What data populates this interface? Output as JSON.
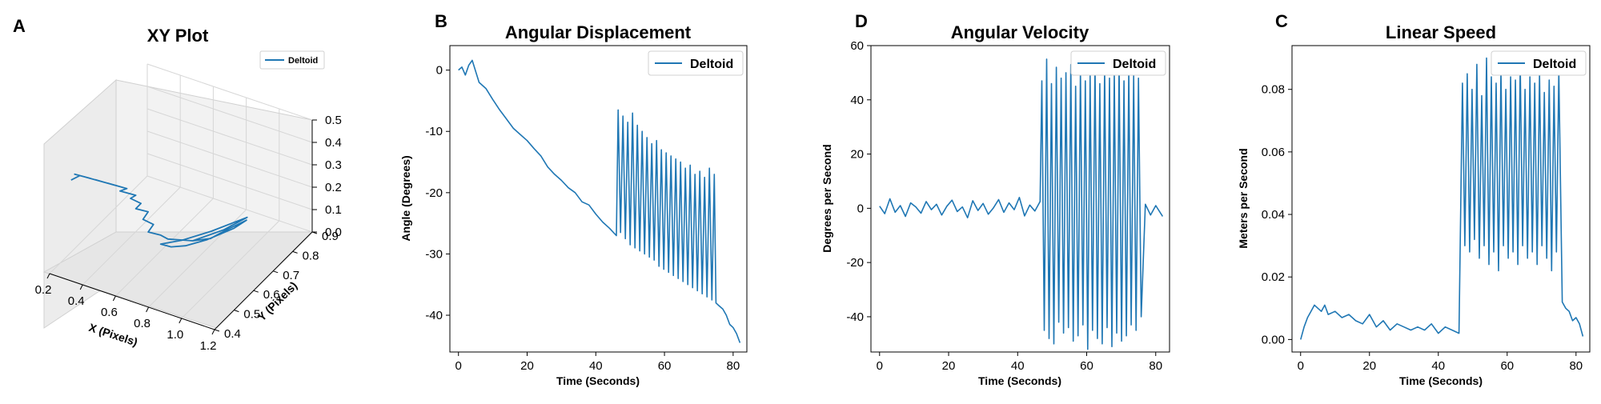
{
  "colors": {
    "series": "#1f77b4",
    "pane": "#f2f2f2",
    "grid": "#d9d9d9",
    "axis": "#000000"
  },
  "chart_data": [
    {
      "panel": "A",
      "type": "line3d",
      "title": "XY Plot",
      "xlabel": "X (Pixels)",
      "ylabel": "Y (Pixels)",
      "zlabel": "",
      "xlim": [
        0.2,
        1.2
      ],
      "ylim": [
        0.4,
        0.9
      ],
      "zlim": [
        0.0,
        0.5
      ],
      "xticks": [
        "0.2",
        "0.4",
        "0.6",
        "0.8",
        "1.0",
        "1.2"
      ],
      "yticks": [
        "0.4",
        "0.5",
        "0.6",
        "0.7",
        "0.8",
        "0.9"
      ],
      "zticks": [
        "0.0",
        "0.1",
        "0.2",
        "0.3",
        "0.4",
        "0.5"
      ],
      "legend": {
        "entries": [
          "Deltoid"
        ],
        "placement": "upper right"
      },
      "series": [
        {
          "name": "Deltoid",
          "points_xyz": [
            [
              0.33,
              0.4,
              0.45
            ],
            [
              0.36,
              0.42,
              0.46
            ],
            [
              0.34,
              0.41,
              0.47
            ],
            [
              0.4,
              0.44,
              0.44
            ],
            [
              0.38,
              0.43,
              0.45
            ],
            [
              0.45,
              0.46,
              0.42
            ],
            [
              0.42,
              0.45,
              0.43
            ],
            [
              0.5,
              0.48,
              0.4
            ],
            [
              0.47,
              0.47,
              0.41
            ],
            [
              0.55,
              0.5,
              0.38
            ],
            [
              0.52,
              0.49,
              0.37
            ],
            [
              0.58,
              0.52,
              0.34
            ],
            [
              0.56,
              0.51,
              0.33
            ],
            [
              0.6,
              0.53,
              0.3
            ],
            [
              0.58,
              0.52,
              0.28
            ],
            [
              0.62,
              0.55,
              0.25
            ],
            [
              0.6,
              0.54,
              0.22
            ],
            [
              0.64,
              0.56,
              0.19
            ],
            [
              0.62,
              0.55,
              0.16
            ],
            [
              0.66,
              0.58,
              0.13
            ],
            [
              0.68,
              0.6,
              0.1
            ],
            [
              0.72,
              0.63,
              0.08
            ],
            [
              0.76,
              0.66,
              0.06
            ],
            [
              0.82,
              0.7,
              0.05
            ],
            [
              0.86,
              0.74,
              0.06
            ],
            [
              0.92,
              0.8,
              0.07
            ],
            [
              0.88,
              0.77,
              0.05
            ],
            [
              0.8,
              0.7,
              0.04
            ],
            [
              0.74,
              0.64,
              0.05
            ],
            [
              0.7,
              0.6,
              0.07
            ],
            [
              0.66,
              0.58,
              0.09
            ],
            [
              0.72,
              0.64,
              0.07
            ],
            [
              0.8,
              0.72,
              0.06
            ],
            [
              0.9,
              0.82,
              0.06
            ],
            [
              0.84,
              0.75,
              0.05
            ],
            [
              0.76,
              0.66,
              0.06
            ]
          ]
        }
      ]
    },
    {
      "panel": "B",
      "type": "line",
      "title": "Angular Displacement",
      "xlabel": "Time (Seconds)",
      "ylabel": "Angle (Degrees)",
      "xlim": [
        -2.5,
        84
      ],
      "ylim": [
        -46,
        4
      ],
      "xticks": [
        0,
        20,
        40,
        60,
        80
      ],
      "yticks": [
        0,
        -10,
        -20,
        -30,
        -40
      ],
      "legend": {
        "entries": [
          "Deltoid"
        ],
        "placement": "upper right"
      },
      "series": [
        {
          "name": "Deltoid",
          "x": [
            0.0,
            1.0,
            2.0,
            3.0,
            4.0,
            6.0,
            8.0,
            10.0,
            12.0,
            14.0,
            16.0,
            18.0,
            20.0,
            22.0,
            24.0,
            26.0,
            28.0,
            30.0,
            32.0,
            34.0,
            36.0,
            38.0,
            40.0,
            42.0,
            44.0,
            46.0,
            46.5,
            47.2,
            47.9,
            48.6,
            49.3,
            50.0,
            50.7,
            51.4,
            52.1,
            52.8,
            53.5,
            54.2,
            54.9,
            55.6,
            56.3,
            57.0,
            57.7,
            58.4,
            59.1,
            59.8,
            60.5,
            61.2,
            61.9,
            62.6,
            63.3,
            64.0,
            64.7,
            65.4,
            66.1,
            66.8,
            67.5,
            68.2,
            68.9,
            69.6,
            70.3,
            71.0,
            71.7,
            72.4,
            73.1,
            73.8,
            74.5,
            75.0,
            76.0,
            77.0,
            78.0,
            79.0,
            80.0,
            81.0,
            82.0
          ],
          "y": [
            0.0,
            0.5,
            -0.8,
            0.8,
            1.6,
            -2.0,
            -3.0,
            -4.8,
            -6.5,
            -8.0,
            -9.5,
            -10.5,
            -11.5,
            -12.8,
            -14.0,
            -15.8,
            -17.0,
            -18.0,
            -19.2,
            -20.0,
            -21.5,
            -22.0,
            -23.5,
            -24.8,
            -25.8,
            -27.0,
            -6.5,
            -26.5,
            -7.5,
            -27.5,
            -8.5,
            -28.5,
            -7.0,
            -29.0,
            -9.0,
            -29.5,
            -10.0,
            -30.0,
            -11.0,
            -30.5,
            -12.0,
            -31.0,
            -11.5,
            -32.0,
            -13.0,
            -32.5,
            -13.5,
            -33.0,
            -14.0,
            -33.5,
            -14.5,
            -34.0,
            -15.0,
            -34.5,
            -16.0,
            -35.0,
            -15.5,
            -35.5,
            -17.0,
            -36.0,
            -16.5,
            -36.5,
            -17.5,
            -37.0,
            -16.0,
            -37.5,
            -17.0,
            -38.0,
            -38.5,
            -39.0,
            -40.0,
            -41.5,
            -42.0,
            -43.0,
            -44.5
          ]
        }
      ]
    },
    {
      "panel": "D",
      "type": "line",
      "title": "Angular Velocity",
      "xlabel": "Time (Seconds)",
      "ylabel": "Degrees per Second",
      "xlim": [
        -2.5,
        84
      ],
      "ylim": [
        -53,
        60
      ],
      "xticks": [
        0,
        20,
        40,
        60,
        80
      ],
      "yticks": [
        60,
        40,
        20,
        0,
        -20,
        -40
      ],
      "legend": {
        "entries": [
          "Deltoid"
        ],
        "placement": "upper right"
      },
      "series": [
        {
          "name": "Deltoid",
          "x": [
            0.0,
            1.5,
            3.0,
            4.5,
            6.0,
            7.5,
            9.0,
            10.5,
            12.0,
            13.5,
            15.0,
            16.5,
            18.0,
            19.5,
            21.0,
            22.5,
            24.0,
            25.5,
            27.0,
            28.5,
            30.0,
            31.5,
            33.0,
            34.5,
            36.0,
            37.5,
            39.0,
            40.5,
            42.0,
            43.5,
            45.0,
            46.5,
            47.0,
            47.7,
            48.4,
            49.1,
            49.8,
            50.5,
            51.2,
            51.9,
            52.6,
            53.3,
            54.0,
            54.7,
            55.4,
            56.1,
            56.8,
            57.5,
            58.2,
            58.9,
            59.6,
            60.3,
            61.0,
            61.7,
            62.4,
            63.1,
            63.8,
            64.5,
            65.2,
            65.9,
            66.6,
            67.3,
            68.0,
            68.7,
            69.4,
            70.1,
            70.8,
            71.5,
            72.2,
            72.9,
            73.6,
            74.3,
            75.0,
            75.8,
            77.0,
            78.5,
            80.0,
            81.5,
            82.0
          ],
          "y": [
            0.8,
            -2.0,
            3.5,
            -1.5,
            1.0,
            -3.0,
            2.0,
            0.5,
            -1.8,
            2.5,
            -0.5,
            1.5,
            -2.5,
            0.8,
            3.0,
            -1.2,
            0.5,
            -3.5,
            2.8,
            -0.8,
            1.8,
            -2.2,
            0.2,
            3.2,
            -1.5,
            2.0,
            -0.5,
            4.0,
            -2.8,
            1.2,
            -1.0,
            2.5,
            47.0,
            -45.0,
            55.0,
            -48.0,
            46.0,
            -50.0,
            52.0,
            -42.0,
            48.0,
            -46.0,
            50.0,
            -44.0,
            53.0,
            -49.0,
            45.0,
            -47.0,
            51.0,
            -43.0,
            47.0,
            -52.0,
            49.0,
            -45.0,
            54.0,
            -48.0,
            46.0,
            -50.0,
            52.0,
            -44.0,
            48.0,
            -51.0,
            50.0,
            -46.0,
            53.0,
            -49.0,
            47.0,
            -47.0,
            51.0,
            -43.0,
            49.0,
            -45.0,
            48.0,
            -40.0,
            1.5,
            -2.5,
            1.0,
            -2.0,
            -3.0
          ]
        }
      ]
    },
    {
      "panel": "C",
      "type": "line",
      "title": "Linear Speed",
      "xlabel": "Time (Seconds)",
      "ylabel": "Meters per Second",
      "xlim": [
        -2.5,
        84
      ],
      "ylim": [
        -0.004,
        0.094
      ],
      "xticks": [
        0,
        20,
        40,
        60,
        80
      ],
      "yticks": [
        "0.00",
        "0.02",
        "0.04",
        "0.06",
        "0.08"
      ],
      "legend": {
        "entries": [
          "Deltoid"
        ],
        "placement": "upper right"
      },
      "series": [
        {
          "name": "Deltoid",
          "x": [
            0.0,
            1.0,
            2.0,
            3.0,
            4.0,
            5.0,
            6.0,
            7.0,
            8.0,
            10.0,
            12.0,
            14.0,
            16.0,
            18.0,
            20.0,
            22.0,
            24.0,
            26.0,
            28.0,
            30.0,
            32.0,
            34.0,
            36.0,
            38.0,
            40.0,
            42.0,
            44.0,
            46.0,
            47.0,
            47.7,
            48.4,
            49.1,
            49.8,
            50.5,
            51.2,
            51.9,
            52.6,
            53.3,
            54.0,
            54.7,
            55.4,
            56.1,
            56.8,
            57.5,
            58.2,
            58.9,
            59.6,
            60.3,
            61.0,
            61.7,
            62.4,
            63.1,
            63.8,
            64.5,
            65.2,
            65.9,
            66.6,
            67.3,
            68.0,
            68.7,
            69.4,
            70.1,
            70.8,
            71.5,
            72.2,
            72.9,
            73.6,
            74.3,
            75.0,
            76.0,
            77.0,
            78.0,
            79.0,
            80.0,
            81.0,
            82.0
          ],
          "y": [
            0.0,
            0.004,
            0.007,
            0.009,
            0.011,
            0.01,
            0.009,
            0.011,
            0.008,
            0.009,
            0.007,
            0.008,
            0.006,
            0.005,
            0.008,
            0.004,
            0.006,
            0.003,
            0.005,
            0.004,
            0.003,
            0.004,
            0.003,
            0.005,
            0.002,
            0.004,
            0.003,
            0.002,
            0.082,
            0.03,
            0.085,
            0.028,
            0.08,
            0.032,
            0.088,
            0.026,
            0.078,
            0.03,
            0.09,
            0.024,
            0.084,
            0.028,
            0.082,
            0.022,
            0.086,
            0.03,
            0.08,
            0.026,
            0.084,
            0.028,
            0.083,
            0.024,
            0.088,
            0.03,
            0.08,
            0.026,
            0.084,
            0.028,
            0.082,
            0.024,
            0.085,
            0.03,
            0.079,
            0.026,
            0.083,
            0.022,
            0.081,
            0.028,
            0.086,
            0.012,
            0.01,
            0.009,
            0.006,
            0.007,
            0.005,
            0.001
          ]
        }
      ]
    }
  ]
}
